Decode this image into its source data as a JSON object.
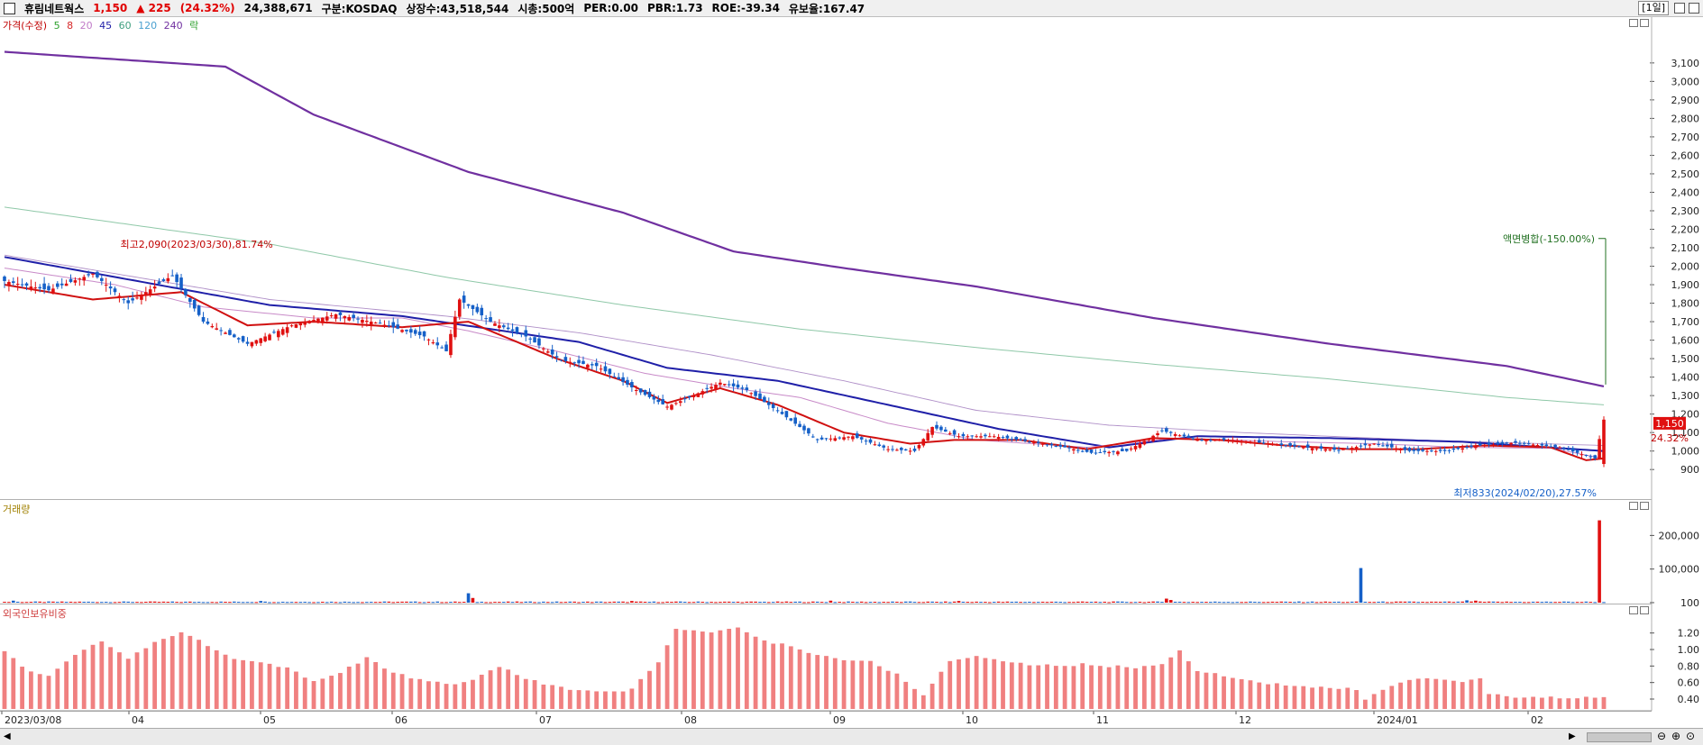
{
  "header": {
    "stock_name": "휴림네트웍스",
    "price": "1,150",
    "change": "▲ 225",
    "change_pct": "(24.32%)",
    "volume": "24,388,671",
    "market": "구분:KOSDAQ",
    "shares": "상장수:43,518,544",
    "market_cap": "시총:500억",
    "per": "PER:0.00",
    "pbr": "PBR:1.73",
    "roe": "ROE:-39.34",
    "float_ratio": "유보율:167.47",
    "period": "[1일]"
  },
  "legend": {
    "price_label": "가격(수정)",
    "ma": [
      {
        "label": "5",
        "color": "#2ca02c"
      },
      {
        "label": "8",
        "color": "#d62728"
      },
      {
        "label": "20",
        "color": "#c07ac8"
      },
      {
        "label": "45",
        "color": "#1f1fa8"
      },
      {
        "label": "60",
        "color": "#7fbfa0"
      },
      {
        "label": "120",
        "color": "#4aa0d0"
      },
      {
        "label": "240",
        "color": "#7030a0"
      }
    ],
    "rak_label": "락"
  },
  "volume_legend": "거래량",
  "foreign_legend": "외국인보유비중",
  "chart_data": [
    {
      "type": "candlestick",
      "title": "가격(수정)",
      "x_labels": [
        "2023/03/08",
        "04",
        "05",
        "06",
        "07",
        "08",
        "09",
        "10",
        "11",
        "12",
        "2024/01",
        "02"
      ],
      "y_ticks": [
        3100,
        3000,
        2900,
        2800,
        2700,
        2600,
        2500,
        2400,
        2300,
        2200,
        2100,
        2000,
        1900,
        1800,
        1700,
        1600,
        1500,
        1400,
        1300,
        1200,
        1100,
        1000,
        900
      ],
      "y_tick_labels": [
        "3,100",
        "3,000",
        "2,900",
        "2,800",
        "2,700",
        "2,600",
        "2,500",
        "2,400",
        "2,300",
        "2,200",
        "2,100",
        "2,000",
        "1,900",
        "1,800",
        "1,700",
        "1,600",
        "1,500",
        "1,400",
        "1,300",
        "1,200",
        "1,100",
        "1,000",
        "900"
      ],
      "ylim": [
        745,
        3265
      ],
      "close_path": [
        [
          0,
          1920
        ],
        [
          10,
          1870
        ],
        [
          20,
          1960
        ],
        [
          28,
          1800
        ],
        [
          38,
          1950
        ],
        [
          45,
          1700
        ],
        [
          55,
          1580
        ],
        [
          65,
          1680
        ],
        [
          75,
          1740
        ],
        [
          85,
          1690
        ],
        [
          95,
          1620
        ],
        [
          100,
          1540
        ],
        [
          103,
          1820
        ],
        [
          110,
          1700
        ],
        [
          118,
          1620
        ],
        [
          126,
          1490
        ],
        [
          134,
          1460
        ],
        [
          143,
          1330
        ],
        [
          150,
          1240
        ],
        [
          155,
          1290
        ],
        [
          162,
          1370
        ],
        [
          168,
          1330
        ],
        [
          176,
          1200
        ],
        [
          184,
          1060
        ],
        [
          192,
          1080
        ],
        [
          200,
          1010
        ],
        [
          206,
          1000
        ],
        [
          210,
          1130
        ],
        [
          216,
          1080
        ],
        [
          224,
          1080
        ],
        [
          232,
          1050
        ],
        [
          240,
          1020
        ],
        [
          246,
          990
        ],
        [
          254,
          1000
        ],
        [
          262,
          1110
        ],
        [
          270,
          1060
        ],
        [
          278,
          1060
        ],
        [
          286,
          1040
        ],
        [
          294,
          1020
        ],
        [
          302,
          1005
        ],
        [
          310,
          1040
        ],
        [
          318,
          1000
        ],
        [
          326,
          1000
        ],
        [
          334,
          1030
        ],
        [
          342,
          1045
        ],
        [
          352,
          1020
        ],
        [
          360,
          960
        ],
        [
          362,
          1170
        ]
      ],
      "ma_lines": {
        "ma8": [
          [
            0,
            1900
          ],
          [
            20,
            1820
          ],
          [
            40,
            1860
          ],
          [
            55,
            1680
          ],
          [
            70,
            1700
          ],
          [
            90,
            1670
          ],
          [
            105,
            1700
          ],
          [
            125,
            1500
          ],
          [
            140,
            1380
          ],
          [
            150,
            1260
          ],
          [
            162,
            1340
          ],
          [
            175,
            1250
          ],
          [
            190,
            1100
          ],
          [
            205,
            1040
          ],
          [
            215,
            1060
          ],
          [
            230,
            1060
          ],
          [
            245,
            1010
          ],
          [
            260,
            1070
          ],
          [
            275,
            1060
          ],
          [
            290,
            1030
          ],
          [
            305,
            1010
          ],
          [
            320,
            1010
          ],
          [
            335,
            1030
          ],
          [
            350,
            1020
          ],
          [
            358,
            950
          ],
          [
            362,
            960
          ]
        ],
        "ma20": [
          [
            0,
            1990
          ],
          [
            25,
            1900
          ],
          [
            45,
            1780
          ],
          [
            70,
            1720
          ],
          [
            90,
            1720
          ],
          [
            105,
            1650
          ],
          [
            125,
            1540
          ],
          [
            145,
            1420
          ],
          [
            165,
            1340
          ],
          [
            180,
            1290
          ],
          [
            200,
            1150
          ],
          [
            220,
            1060
          ],
          [
            245,
            1020
          ],
          [
            265,
            1070
          ],
          [
            290,
            1050
          ],
          [
            310,
            1040
          ],
          [
            330,
            1020
          ],
          [
            350,
            1015
          ],
          [
            362,
            960
          ]
        ],
        "ma45": [
          [
            0,
            2050
          ],
          [
            30,
            1920
          ],
          [
            60,
            1790
          ],
          [
            90,
            1730
          ],
          [
            110,
            1660
          ],
          [
            130,
            1590
          ],
          [
            150,
            1450
          ],
          [
            175,
            1380
          ],
          [
            200,
            1250
          ],
          [
            225,
            1120
          ],
          [
            250,
            1020
          ],
          [
            270,
            1080
          ],
          [
            300,
            1070
          ],
          [
            330,
            1050
          ],
          [
            362,
            1000
          ]
        ],
        "ma60": [
          [
            0,
            2060
          ],
          [
            60,
            1820
          ],
          [
            100,
            1730
          ],
          [
            130,
            1640
          ],
          [
            160,
            1520
          ],
          [
            190,
            1380
          ],
          [
            220,
            1220
          ],
          [
            250,
            1140
          ],
          [
            280,
            1100
          ],
          [
            320,
            1060
          ],
          [
            362,
            1030
          ]
        ],
        "ma120": [
          [
            0,
            2320
          ],
          [
            60,
            2120
          ],
          [
            100,
            1940
          ],
          [
            140,
            1790
          ],
          [
            180,
            1660
          ],
          [
            220,
            1560
          ],
          [
            260,
            1470
          ],
          [
            300,
            1390
          ],
          [
            340,
            1290
          ],
          [
            362,
            1250
          ]
        ],
        "ma240": [
          [
            0,
            3160
          ],
          [
            50,
            3080
          ],
          [
            70,
            2820
          ],
          [
            105,
            2510
          ],
          [
            140,
            2290
          ],
          [
            165,
            2080
          ],
          [
            190,
            1990
          ],
          [
            220,
            1890
          ],
          [
            260,
            1720
          ],
          [
            300,
            1580
          ],
          [
            340,
            1460
          ],
          [
            362,
            1350
          ]
        ]
      },
      "annotations": [
        {
          "text": "최고2,090(2023/03/30),81.74%",
          "x": 25,
          "value": 2090
        },
        {
          "text": "최저833(2024/02/20),27.57%",
          "x": 362,
          "value": 833
        },
        {
          "text": "액면병합(-150.00%)",
          "x": 362,
          "value": 2150
        }
      ],
      "last_price_tag": "1,150",
      "last_change_tag": "24.32%"
    },
    {
      "type": "bar",
      "title": "거래량",
      "y_ticks": [
        200000,
        100000,
        100
      ],
      "y_tick_labels": [
        "200,000",
        "100,000",
        "100"
      ],
      "ylim": [
        0,
        260000
      ],
      "spikes": [
        [
          2,
          6000
        ],
        [
          58,
          5000
        ],
        [
          105,
          28000
        ],
        [
          106,
          14000
        ],
        [
          142,
          5000
        ],
        [
          187,
          6000
        ],
        [
          216,
          5000
        ],
        [
          263,
          12000
        ],
        [
          264,
          8000
        ],
        [
          307,
          103000
        ],
        [
          331,
          7000
        ],
        [
          333,
          6000
        ],
        [
          361,
          245000
        ]
      ],
      "baseline": 2500
    },
    {
      "type": "bar",
      "title": "외국인보유비중",
      "y_ticks": [
        1.2,
        1.0,
        0.8,
        0.6,
        0.4
      ],
      "y_tick_labels": [
        "1.20",
        "1.00",
        "0.80",
        "0.60",
        "0.40"
      ],
      "ylim": [
        0.28,
        1.36
      ],
      "profile": [
        [
          0,
          0.97
        ],
        [
          5,
          0.75
        ],
        [
          10,
          0.68
        ],
        [
          16,
          0.95
        ],
        [
          22,
          1.1
        ],
        [
          28,
          0.88
        ],
        [
          33,
          1.06
        ],
        [
          40,
          1.22
        ],
        [
          46,
          1.05
        ],
        [
          52,
          0.9
        ],
        [
          58,
          0.85
        ],
        [
          64,
          0.78
        ],
        [
          70,
          0.62
        ],
        [
          76,
          0.72
        ],
        [
          82,
          0.9
        ],
        [
          88,
          0.72
        ],
        [
          94,
          0.63
        ],
        [
          100,
          0.58
        ],
        [
          106,
          0.62
        ],
        [
          112,
          0.8
        ],
        [
          118,
          0.65
        ],
        [
          124,
          0.56
        ],
        [
          130,
          0.5
        ],
        [
          136,
          0.48
        ],
        [
          142,
          0.52
        ],
        [
          148,
          0.85
        ],
        [
          152,
          1.25
        ],
        [
          160,
          1.2
        ],
        [
          166,
          1.27
        ],
        [
          172,
          1.1
        ],
        [
          178,
          1.05
        ],
        [
          184,
          0.93
        ],
        [
          190,
          0.88
        ],
        [
          196,
          0.85
        ],
        [
          202,
          0.7
        ],
        [
          208,
          0.45
        ],
        [
          214,
          0.86
        ],
        [
          220,
          0.92
        ],
        [
          226,
          0.86
        ],
        [
          232,
          0.82
        ],
        [
          238,
          0.8
        ],
        [
          244,
          0.82
        ],
        [
          250,
          0.8
        ],
        [
          256,
          0.78
        ],
        [
          262,
          0.83
        ],
        [
          266,
          0.98
        ],
        [
          270,
          0.75
        ],
        [
          276,
          0.68
        ],
        [
          282,
          0.62
        ],
        [
          288,
          0.58
        ],
        [
          294,
          0.55
        ],
        [
          300,
          0.53
        ],
        [
          306,
          0.52
        ],
        [
          308,
          0.38
        ],
        [
          313,
          0.55
        ],
        [
          320,
          0.65
        ],
        [
          326,
          0.62
        ],
        [
          330,
          0.6
        ],
        [
          334,
          0.65
        ],
        [
          336,
          0.47
        ],
        [
          342,
          0.42
        ],
        [
          362,
          0.42
        ]
      ]
    }
  ]
}
